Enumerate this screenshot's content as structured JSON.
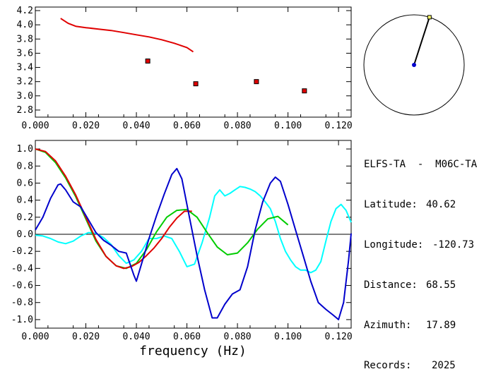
{
  "info": {
    "title": "ELFS-TA  -  M06C-TA",
    "rows": [
      {
        "label": "Latitude:",
        "value": "40.62"
      },
      {
        "label": "Longitude:",
        "value": "-120.73"
      },
      {
        "label": "Distance:",
        "value": "68.55"
      },
      {
        "label": "Azimuth:",
        "value": "17.89"
      },
      {
        "label": "Records:",
        "value": "2025"
      }
    ]
  },
  "azimuth_dial": {
    "azimuth_deg": 17.89
  },
  "chart_data": [
    {
      "type": "scatter",
      "xlim": [
        0,
        0.125
      ],
      "ylim": [
        2.7,
        4.25
      ],
      "xticks": [
        "0.000",
        "0.020",
        "0.040",
        "0.060",
        "0.080",
        "0.100",
        "0.120"
      ],
      "yticks": [
        "2.8",
        "3.0",
        "3.2",
        "3.4",
        "3.6",
        "3.8",
        "4.0",
        "4.2"
      ],
      "series": [
        {
          "color": "#e00000",
          "kind": "line",
          "x": [
            0.01,
            0.013,
            0.016,
            0.02,
            0.025,
            0.03,
            0.035,
            0.04,
            0.045,
            0.05,
            0.055,
            0.06,
            0.0625
          ],
          "y": [
            4.09,
            4.02,
            3.98,
            3.96,
            3.94,
            3.92,
            3.89,
            3.86,
            3.83,
            3.79,
            3.74,
            3.68,
            3.62
          ]
        },
        {
          "color": "#e00000",
          "kind": "points",
          "x": [
            0.0445,
            0.0635,
            0.0875,
            0.1065
          ],
          "y": [
            3.49,
            3.17,
            3.2,
            3.07
          ]
        }
      ]
    },
    {
      "type": "line",
      "xlim": [
        0,
        0.125
      ],
      "ylim": [
        -1.1,
        1.1
      ],
      "xlabel": "frequency (Hz)",
      "xticks": [
        "0.000",
        "0.020",
        "0.040",
        "0.060",
        "0.080",
        "0.100",
        "0.120"
      ],
      "yticks": [
        "1.0",
        "0.8",
        "0.6",
        "0.4",
        "0.2",
        "0.0",
        "-0.2",
        "-0.4",
        "-0.6",
        "-0.8",
        "-1.0"
      ],
      "series": [
        {
          "color": "#00ffff",
          "x": [
            0,
            0.003,
            0.006,
            0.009,
            0.012,
            0.015,
            0.018,
            0.021,
            0.024,
            0.027,
            0.03,
            0.033,
            0.036,
            0.039,
            0.042,
            0.045,
            0.048,
            0.051,
            0.054,
            0.057,
            0.06,
            0.063,
            0.066,
            0.069,
            0.071,
            0.073,
            0.075,
            0.077,
            0.079,
            0.081,
            0.083,
            0.085,
            0.087,
            0.089,
            0.091,
            0.093,
            0.095,
            0.097,
            0.099,
            0.101,
            0.103,
            0.105,
            0.107,
            0.109,
            0.111,
            0.113,
            0.115,
            0.117,
            0.119,
            0.121,
            0.123,
            0.125
          ],
          "y": [
            -0.01,
            -0.02,
            -0.05,
            -0.09,
            -0.11,
            -0.08,
            -0.02,
            0.02,
            0.01,
            -0.04,
            -0.12,
            -0.25,
            -0.34,
            -0.3,
            -0.2,
            -0.05,
            -0.05,
            -0.02,
            -0.05,
            -0.2,
            -0.38,
            -0.35,
            -0.1,
            0.2,
            0.45,
            0.52,
            0.45,
            0.48,
            0.52,
            0.56,
            0.55,
            0.53,
            0.5,
            0.45,
            0.38,
            0.3,
            0.15,
            -0.05,
            -0.2,
            -0.3,
            -0.38,
            -0.42,
            -0.42,
            -0.45,
            -0.42,
            -0.32,
            -0.08,
            0.15,
            0.3,
            0.35,
            0.28,
            0.14
          ]
        },
        {
          "color": "#00cc00",
          "x": [
            0,
            0.004,
            0.008,
            0.012,
            0.016,
            0.02,
            0.024,
            0.028,
            0.032,
            0.036,
            0.04,
            0.044,
            0.048,
            0.052,
            0.056,
            0.06,
            0.064,
            0.068,
            0.072,
            0.076,
            0.08,
            0.084,
            0.088,
            0.092,
            0.096,
            0.1
          ],
          "y": [
            1.0,
            0.96,
            0.84,
            0.66,
            0.44,
            0.18,
            -0.08,
            -0.26,
            -0.37,
            -0.4,
            -0.34,
            -0.18,
            0.03,
            0.2,
            0.28,
            0.29,
            0.2,
            0.02,
            -0.15,
            -0.24,
            -0.22,
            -0.1,
            0.06,
            0.18,
            0.21,
            0.11
          ]
        },
        {
          "color": "#e00000",
          "x": [
            0,
            0.004,
            0.008,
            0.012,
            0.016,
            0.02,
            0.024,
            0.028,
            0.032,
            0.035,
            0.038,
            0.041,
            0.044,
            0.047,
            0.05,
            0.053,
            0.056,
            0.059,
            0.062
          ],
          "y": [
            1.0,
            0.97,
            0.86,
            0.68,
            0.46,
            0.2,
            -0.06,
            -0.26,
            -0.37,
            -0.4,
            -0.38,
            -0.33,
            -0.25,
            -0.16,
            -0.05,
            0.08,
            0.19,
            0.27,
            0.27
          ]
        },
        {
          "color": "#0000cc",
          "x": [
            0,
            0.003,
            0.006,
            0.009,
            0.01,
            0.012,
            0.015,
            0.018,
            0.021,
            0.024,
            0.027,
            0.03,
            0.033,
            0.036,
            0.039,
            0.04,
            0.042,
            0.045,
            0.048,
            0.051,
            0.054,
            0.056,
            0.058,
            0.061,
            0.064,
            0.067,
            0.07,
            0.072,
            0.075,
            0.078,
            0.081,
            0.084,
            0.087,
            0.09,
            0.093,
            0.095,
            0.097,
            0.1,
            0.103,
            0.106,
            0.109,
            0.112,
            0.115,
            0.118,
            0.12,
            0.122,
            0.124,
            0.125
          ],
          "y": [
            0.05,
            0.2,
            0.42,
            0.58,
            0.59,
            0.52,
            0.38,
            0.32,
            0.17,
            0.02,
            -0.07,
            -0.13,
            -0.2,
            -0.22,
            -0.48,
            -0.55,
            -0.35,
            -0.05,
            0.22,
            0.47,
            0.7,
            0.77,
            0.65,
            0.2,
            -0.25,
            -0.65,
            -0.98,
            -0.98,
            -0.82,
            -0.7,
            -0.65,
            -0.38,
            0.05,
            0.38,
            0.6,
            0.67,
            0.62,
            0.35,
            0.05,
            -0.25,
            -0.55,
            -0.8,
            -0.88,
            -0.95,
            -1.0,
            -0.8,
            -0.3,
            0.01
          ]
        }
      ]
    }
  ]
}
